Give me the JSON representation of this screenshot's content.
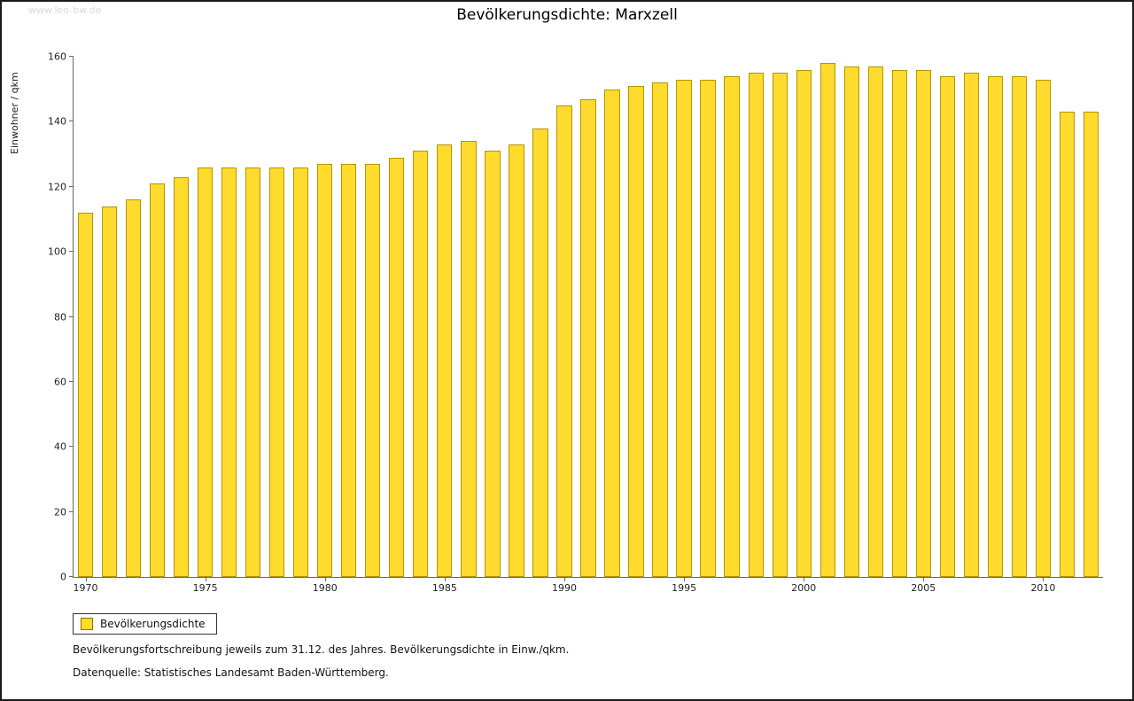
{
  "page": {
    "watermark": "www.leo-bw.de",
    "title": "Bevölkerungsdichte: Marxzell",
    "y_axis_title": "Einwohner / qkm",
    "legend_label": "Bevölkerungsdichte",
    "footnote1": "Bevölkerungsfortschreibung jeweils zum 31.12. des Jahres. Bevölkerungsdichte in Einw./qkm.",
    "footnote2": "Datenquelle: Statistisches Landesamt Baden-Württemberg."
  },
  "chart_data": {
    "type": "bar",
    "title": "Bevölkerungsdichte: Marxzell",
    "xlabel": "",
    "ylabel": "Einwohner / qkm",
    "ylim": [
      0,
      160
    ],
    "yticks": [
      0,
      20,
      40,
      60,
      80,
      100,
      120,
      140,
      160
    ],
    "xtick_labels": [
      "1970",
      "1975",
      "1980",
      "1985",
      "1990",
      "1995",
      "2000",
      "2005",
      "2010"
    ],
    "grid": false,
    "legend": [
      "Bevölkerungsdichte"
    ],
    "legend_position": "bottom-left",
    "bar_fill": "#ffdb2e",
    "bar_border": "#b59500",
    "categories": [
      1970,
      1971,
      1972,
      1973,
      1974,
      1975,
      1976,
      1977,
      1978,
      1979,
      1980,
      1981,
      1982,
      1983,
      1984,
      1985,
      1986,
      1987,
      1988,
      1989,
      1990,
      1991,
      1992,
      1993,
      1994,
      1995,
      1996,
      1997,
      1998,
      1999,
      2000,
      2001,
      2002,
      2003,
      2004,
      2005,
      2006,
      2007,
      2008,
      2009,
      2010,
      2011,
      2012
    ],
    "values": [
      112,
      114,
      116,
      121,
      123,
      126,
      126,
      126,
      126,
      126,
      127,
      127,
      127,
      129,
      131,
      133,
      134,
      131,
      133,
      138,
      145,
      147,
      150,
      151,
      152,
      153,
      153,
      154,
      155,
      155,
      156,
      158,
      157,
      157,
      156,
      156,
      154,
      155,
      154,
      154,
      153,
      143,
      143
    ]
  }
}
